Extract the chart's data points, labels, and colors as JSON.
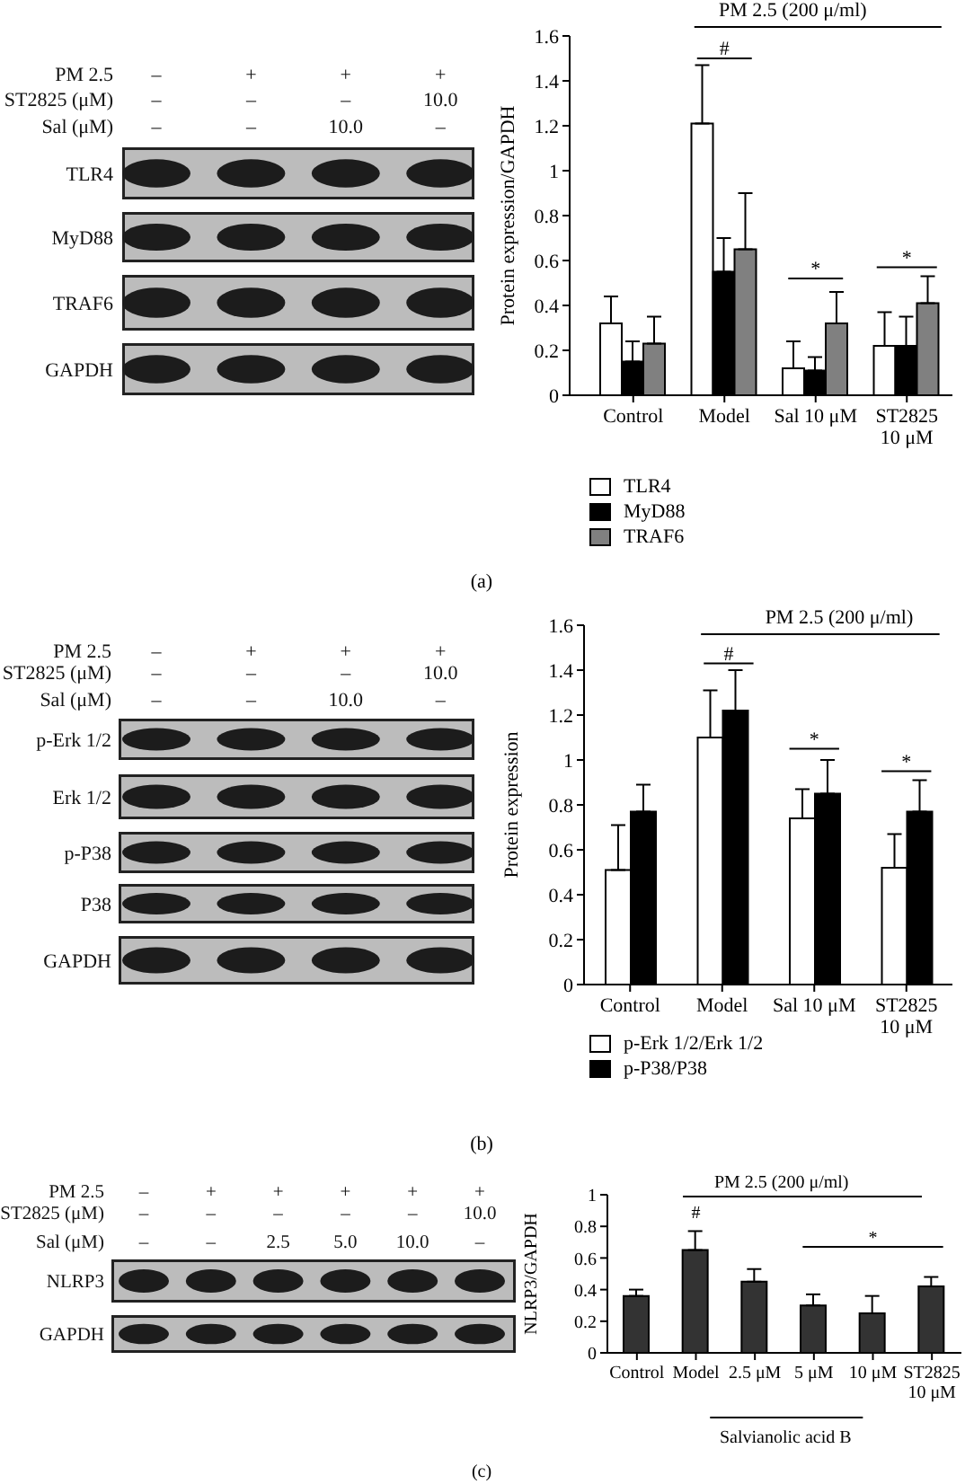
{
  "chart_data": [
    {
      "type": "other",
      "y_categories": [
        "PM 2.5",
        "ST2825 (μM)",
        "Sal (μM)"
      ],
      "cell_labels": [
        [
          "–",
          "+",
          "+",
          "+"
        ],
        [
          "–",
          "–",
          "–",
          "10.0"
        ],
        [
          "–",
          "–",
          "10.0",
          "–"
        ]
      ],
      "annotations": [
        "TLR4",
        "MyD88",
        "TRAF6",
        "GAPDH"
      ]
    },
    {
      "type": "bar",
      "ylabel": "Protein expression/GAPDH",
      "categories": [
        "Control",
        "Model",
        "Sal 10 μM",
        "ST2825 10 μM"
      ],
      "series": [
        {
          "name": "TLR4",
          "color": "#ffffff",
          "values": [
            0.32,
            1.21,
            0.12,
            0.22
          ],
          "errors": [
            0.12,
            0.26,
            0.12,
            0.15
          ]
        },
        {
          "name": "MyD88",
          "color": "#000000",
          "values": [
            0.15,
            0.55,
            0.11,
            0.22
          ],
          "errors": [
            0.09,
            0.15,
            0.06,
            0.13
          ]
        },
        {
          "name": "TRAF6",
          "color": "#808080",
          "values": [
            0.23,
            0.65,
            0.32,
            0.41
          ],
          "errors": [
            0.12,
            0.25,
            0.14,
            0.12
          ]
        }
      ],
      "ylim": [
        0,
        1.6
      ],
      "yticks": [
        0,
        0.2,
        0.4,
        0.6,
        0.8,
        1,
        1.2,
        1.4,
        1.6
      ],
      "legend": "bottom",
      "annotations": [
        "PM 2.5 (200 μ/ml)",
        "#",
        "*",
        "*",
        "(a)"
      ]
    },
    {
      "type": "other",
      "y_categories": [
        "PM 2.5",
        "ST2825 (μM)",
        "Sal (μM)"
      ],
      "cell_labels": [
        [
          "–",
          "+",
          "+",
          "+"
        ],
        [
          "–",
          "–",
          "–",
          "10.0"
        ],
        [
          "–",
          "–",
          "10.0",
          "–"
        ]
      ],
      "annotations": [
        "p-Erk 1/2",
        "Erk 1/2",
        "p-P38",
        "P38",
        "GAPDH"
      ]
    },
    {
      "type": "bar",
      "ylabel": "Protein expression",
      "categories": [
        "Control",
        "Model",
        "Sal 10 μM",
        "ST2825 10 μM"
      ],
      "series": [
        {
          "name": "p-Erk 1/2/Erk 1/2",
          "color": "#ffffff",
          "values": [
            0.51,
            1.1,
            0.74,
            0.52
          ],
          "errors": [
            0.2,
            0.21,
            0.13,
            0.15
          ]
        },
        {
          "name": "p-P38/P38",
          "color": "#000000",
          "values": [
            0.77,
            1.22,
            0.85,
            0.77
          ],
          "errors": [
            0.12,
            0.18,
            0.15,
            0.14
          ]
        }
      ],
      "ylim": [
        0,
        1.6
      ],
      "yticks": [
        0,
        0.2,
        0.4,
        0.6,
        0.8,
        1,
        1.2,
        1.4,
        1.6
      ],
      "legend": "bottom",
      "annotations": [
        "PM 2.5 (200 μ/ml)",
        "#",
        "*",
        "*",
        "(b)"
      ]
    },
    {
      "type": "other",
      "y_categories": [
        "PM 2.5",
        "ST2825 (μM)",
        "Sal (μM)"
      ],
      "cell_labels": [
        [
          "–",
          "+",
          "+",
          "+",
          "+",
          "+"
        ],
        [
          "–",
          "–",
          "–",
          "–",
          "–",
          "10.0"
        ],
        [
          "–",
          "–",
          "2.5",
          "5.0",
          "10.0",
          "–"
        ]
      ],
      "annotations": [
        "NLRP3",
        "GAPDH"
      ]
    },
    {
      "type": "bar",
      "ylabel": "NLRP3/GAPDH",
      "categories": [
        "Control",
        "Model",
        "2.5 μM",
        "5 μM",
        "10 μM",
        "ST2825 10 μM"
      ],
      "values": [
        0.36,
        0.65,
        0.45,
        0.3,
        0.25,
        0.42
      ],
      "errors": [
        0.04,
        0.12,
        0.08,
        0.07,
        0.11,
        0.06
      ],
      "color": "#333333",
      "ylim": [
        0,
        1
      ],
      "yticks": [
        0,
        0.2,
        0.4,
        0.6,
        0.8,
        1
      ],
      "annotations": [
        "PM 2.5 (200 μ/ml)",
        "#",
        "*",
        "Salvianolic acid B",
        "(c)"
      ]
    }
  ]
}
